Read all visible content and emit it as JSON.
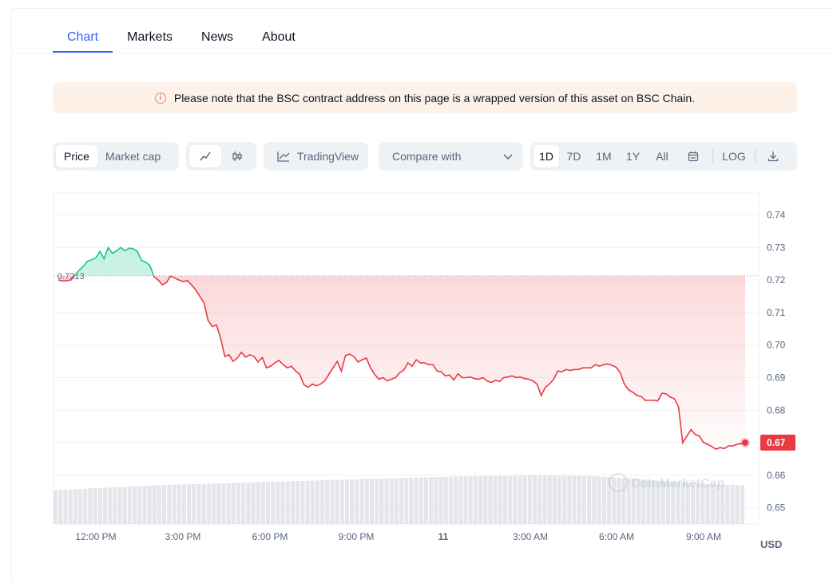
{
  "tabs": [
    {
      "label": "Chart",
      "active": true
    },
    {
      "label": "Markets",
      "active": false
    },
    {
      "label": "News",
      "active": false
    },
    {
      "label": "About",
      "active": false
    }
  ],
  "notice": {
    "icon": "info-icon",
    "text": "Please note that the BSC contract address on this page is a wrapped version of this asset on BSC Chain."
  },
  "toolbar": {
    "metric": {
      "options": [
        "Price",
        "Market cap"
      ],
      "selected": "Price"
    },
    "chart_style": {
      "options": [
        "line-chart-icon",
        "candlestick-icon"
      ],
      "selected": "line-chart-icon"
    },
    "tradingview_label": "TradingView",
    "compare_label": "Compare with",
    "ranges": [
      "1D",
      "7D",
      "1M",
      "1Y",
      "All"
    ],
    "selected_range": "1D",
    "log_label": "LOG"
  },
  "chart_data": {
    "type": "line",
    "currency_label": "USD",
    "watermark": "CoinMarketCap",
    "ylim": [
      0.645,
      0.747
    ],
    "yticks": [
      "0.74",
      "0.73",
      "0.72",
      "0.71",
      "0.70",
      "0.69",
      "0.68",
      "0.67",
      "0.66",
      "0.65"
    ],
    "xticks": [
      "12:00 PM",
      "3:00 PM",
      "6:00 PM",
      "9:00 PM",
      "11",
      "3:00 AM",
      "6:00 AM",
      "9:00 AM"
    ],
    "open_price": 0.7213,
    "open_price_label": "0.7213",
    "last_price_label": "0.67",
    "up_color": "#16c784",
    "down_color": "#ea3943",
    "series": [
      {
        "values": [
          0.72,
          0.7197,
          0.7198,
          0.72,
          0.7214,
          0.723,
          0.7242,
          0.7258,
          0.7262,
          0.7268,
          0.7288,
          0.7265,
          0.73,
          0.7282,
          0.729,
          0.73,
          0.729,
          0.7298,
          0.7296,
          0.7288,
          0.726,
          0.7255,
          0.7245,
          0.721,
          0.72,
          0.7185,
          0.7193,
          0.7212,
          0.7206,
          0.72,
          0.7195,
          0.7198,
          0.7185,
          0.717,
          0.715,
          0.713,
          0.7075,
          0.7057,
          0.7062,
          0.702,
          0.6965,
          0.697,
          0.695,
          0.696,
          0.6978,
          0.6963,
          0.697,
          0.6965,
          0.6948,
          0.6962,
          0.693,
          0.6935,
          0.6945,
          0.6953,
          0.694,
          0.693,
          0.6935,
          0.692,
          0.691,
          0.6878,
          0.687,
          0.688,
          0.6875,
          0.688,
          0.689,
          0.691,
          0.693,
          0.695,
          0.692,
          0.6968,
          0.6972,
          0.6965,
          0.6948,
          0.6955,
          0.696,
          0.693,
          0.691,
          0.6895,
          0.69,
          0.689,
          0.6895,
          0.69,
          0.6915,
          0.6923,
          0.6945,
          0.6935,
          0.6955,
          0.6945,
          0.6945,
          0.694,
          0.694,
          0.692,
          0.6918,
          0.6905,
          0.6908,
          0.6892,
          0.6912,
          0.69,
          0.69,
          0.6902,
          0.6897,
          0.6895,
          0.69,
          0.689,
          0.6885,
          0.6892,
          0.6888,
          0.69,
          0.6902,
          0.6905,
          0.69,
          0.6902,
          0.6897,
          0.6895,
          0.689,
          0.688,
          0.6845,
          0.687,
          0.688,
          0.6895,
          0.692,
          0.6918,
          0.6925,
          0.6922,
          0.6925,
          0.6925,
          0.693,
          0.693,
          0.693,
          0.694,
          0.6935,
          0.694,
          0.6942,
          0.6938,
          0.6932,
          0.6915,
          0.688,
          0.6862,
          0.6855,
          0.6845,
          0.6842,
          0.683,
          0.683,
          0.683,
          0.6828,
          0.6852,
          0.685,
          0.684,
          0.6835,
          0.681,
          0.67,
          0.672,
          0.674,
          0.6725,
          0.672,
          0.67,
          0.6695,
          0.6688,
          0.668,
          0.6685,
          0.6682,
          0.669,
          0.669,
          0.6695,
          0.6697,
          0.67
        ]
      }
    ],
    "volume_relative": [
      0.55,
      0.56,
      0.58,
      0.6,
      0.62,
      0.63,
      0.65,
      0.66,
      0.68,
      0.7,
      0.71,
      0.72,
      0.73,
      0.74,
      0.75,
      0.76,
      0.77,
      0.78,
      0.79,
      0.8,
      0.81,
      0.82,
      0.83,
      0.84,
      0.85,
      0.86,
      0.87,
      0.88,
      0.89,
      0.9,
      0.91,
      0.92,
      0.93,
      0.94,
      0.95,
      0.96,
      0.97,
      0.97,
      0.98,
      0.98,
      0.99,
      0.99,
      1.0,
      1.0,
      1.0,
      0.99,
      0.99,
      0.98,
      0.97,
      0.95,
      0.93,
      0.91,
      0.88,
      0.85,
      0.82,
      0.8,
      0.78,
      0.76,
      0.74,
      0.72,
      0.71,
      0.7
    ]
  }
}
